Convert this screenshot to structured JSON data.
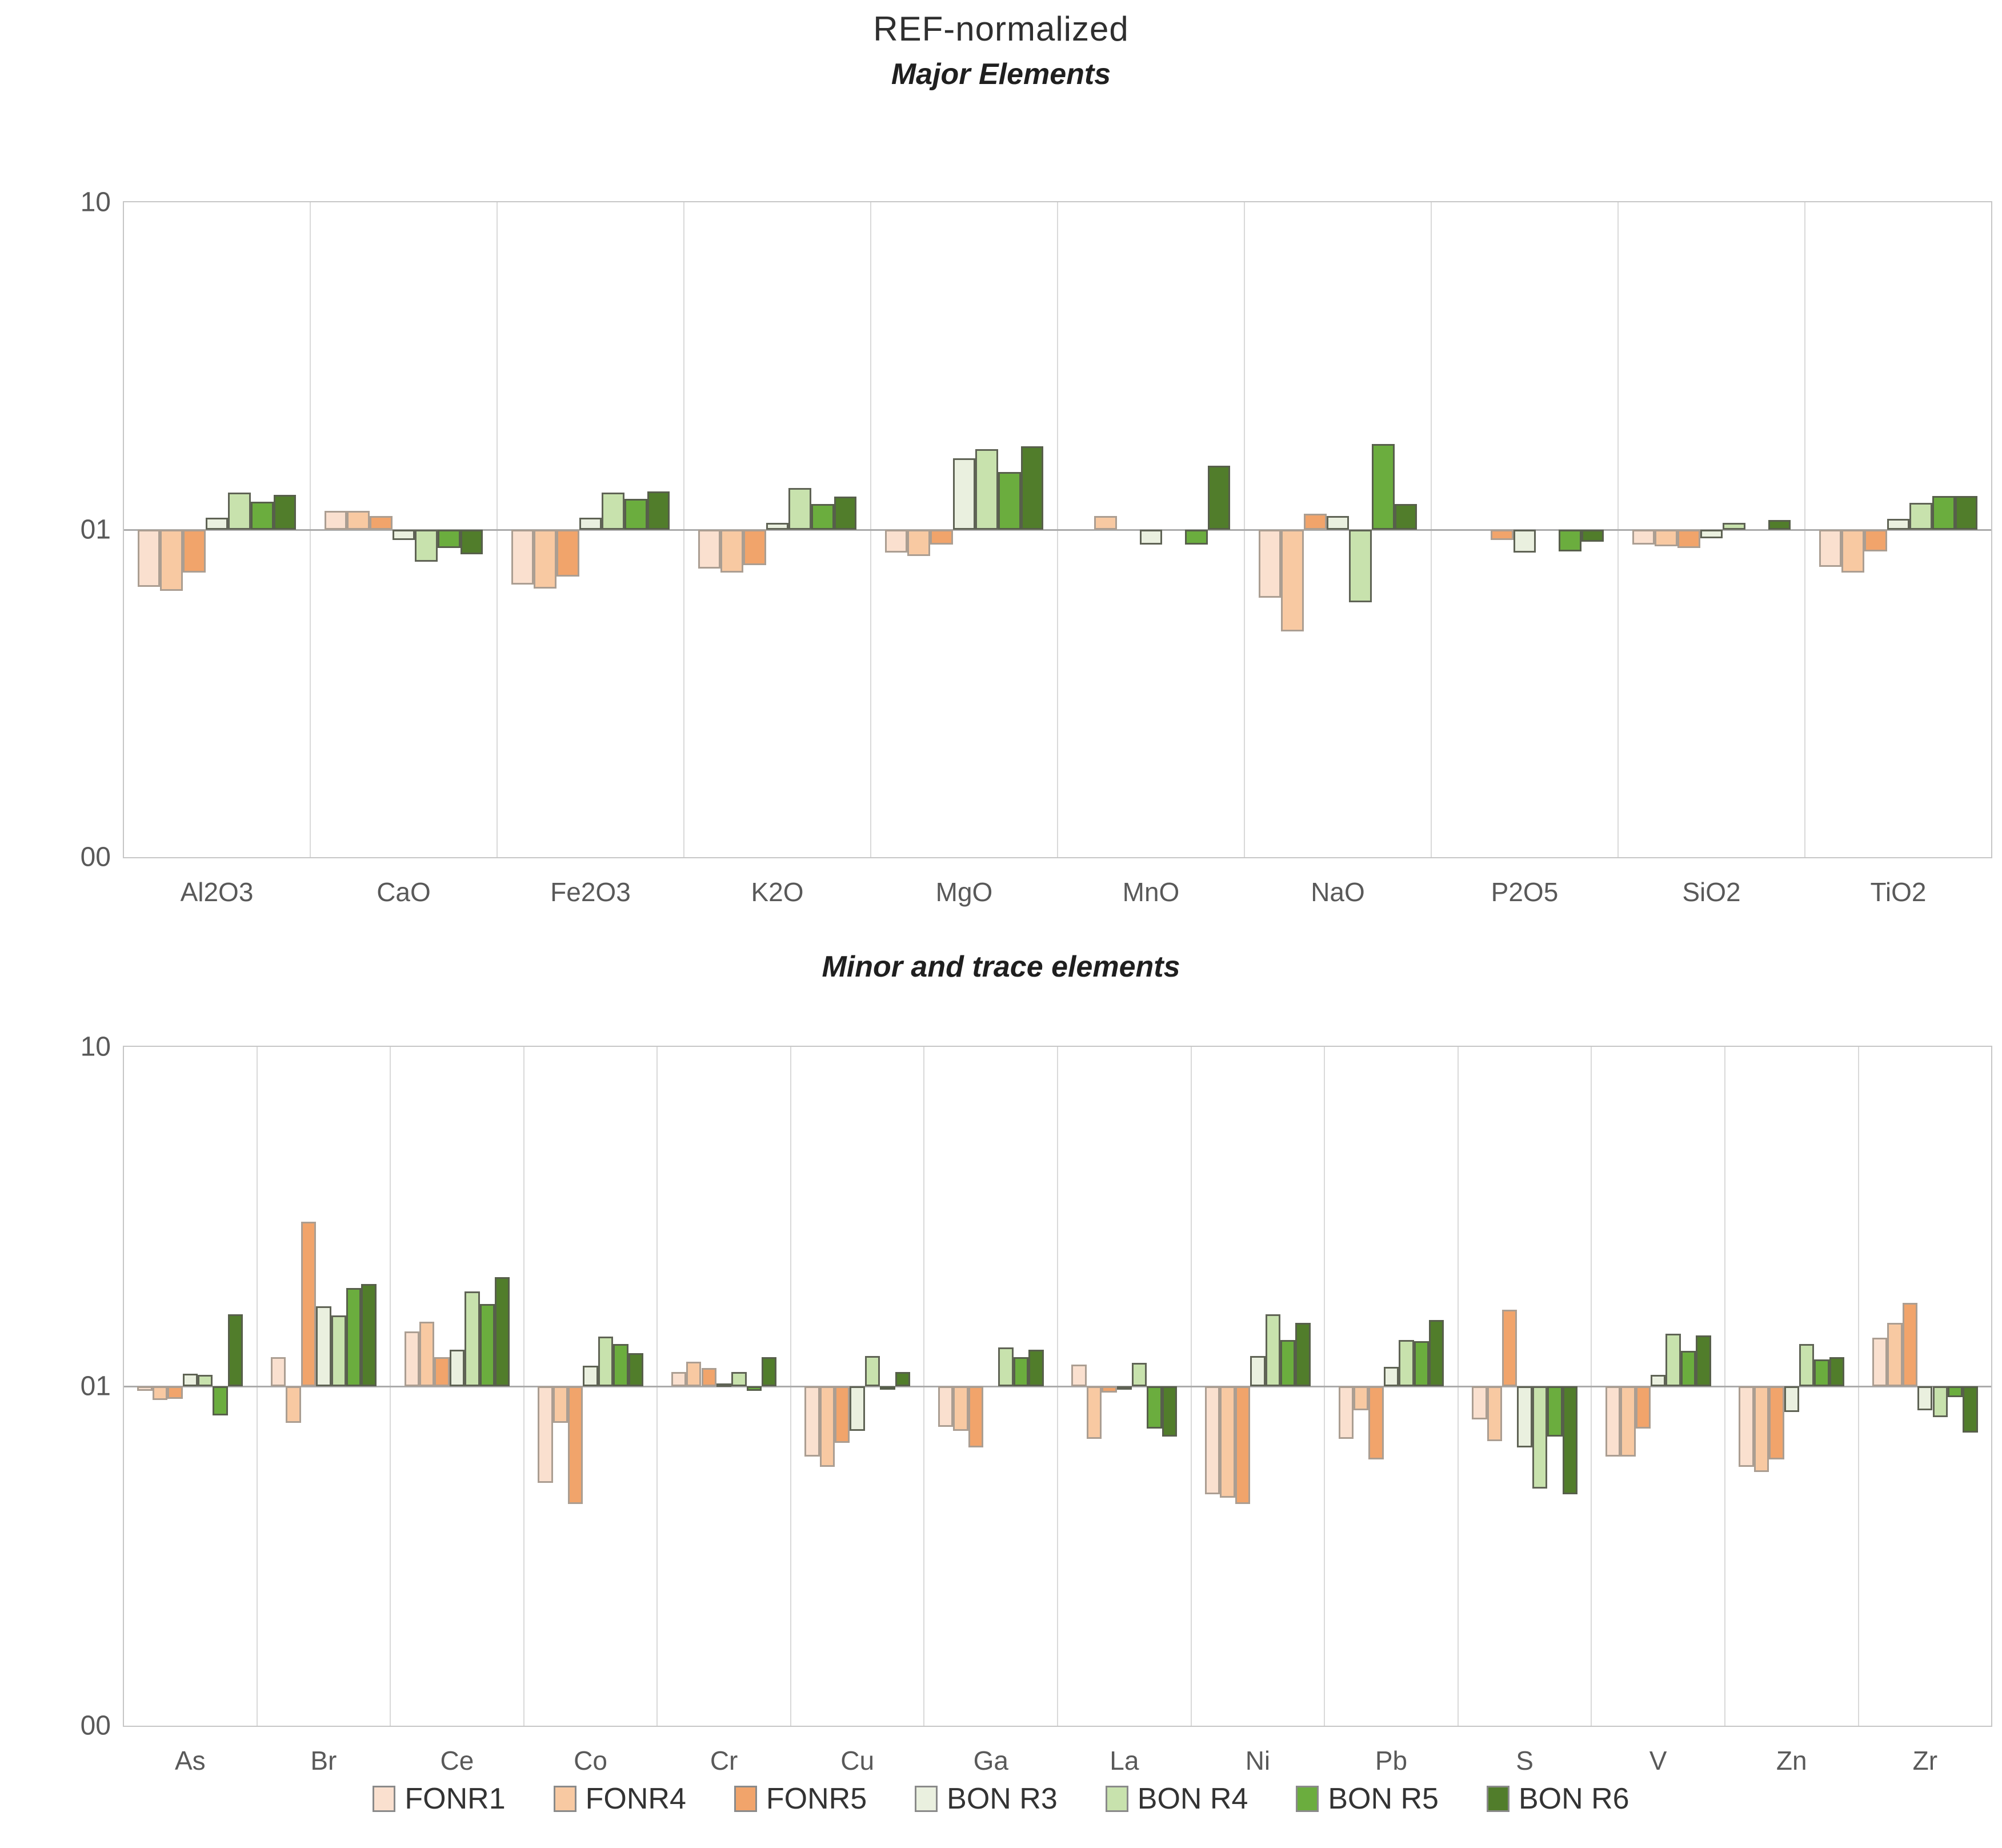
{
  "title": "REF-normalized",
  "legend": {
    "items": [
      {
        "label": "FONR1",
        "fill": "#fae0cf",
        "border": "#ab9e92"
      },
      {
        "label": "FONR4",
        "fill": "#f8c9a2",
        "border": "#ab9e92"
      },
      {
        "label": "FONR5",
        "fill": "#f1a46b",
        "border": "#ab9e92"
      },
      {
        "label": "BON R3",
        "fill": "#eaf0df",
        "border": "#5f6355"
      },
      {
        "label": "BON R4",
        "fill": "#c8e2ad",
        "border": "#5f6355"
      },
      {
        "label": "BON R5",
        "fill": "#6bad3e",
        "border": "#575f4b"
      },
      {
        "label": "BON R6",
        "fill": "#517d2b",
        "border": "#575f4b"
      }
    ]
  },
  "chart_data": [
    {
      "type": "bar",
      "subtitle": "Major Elements",
      "bar_width_pct": 12.2,
      "y_axis": {
        "scale": "log",
        "min": 0.1,
        "max": 10,
        "baseline": 1,
        "tick_labels": [
          "10",
          "01",
          "00"
        ]
      },
      "grid": "vertical-category-separators",
      "legend_position": "none",
      "categories": [
        "Al2O3",
        "CaO",
        "Fe2O3",
        "K2O",
        "MgO",
        "MnO",
        "NaO",
        "P2O5",
        "SiO2",
        "TiO2"
      ],
      "series": [
        {
          "name": "FONR1",
          "values": [
            0.67,
            1.14,
            0.68,
            0.76,
            0.85,
            1.0,
            0.62,
            1.0,
            0.9,
            0.77
          ]
        },
        {
          "name": "FONR4",
          "values": [
            0.65,
            1.14,
            0.66,
            0.74,
            0.83,
            1.1,
            0.49,
            1.0,
            0.89,
            0.74
          ]
        },
        {
          "name": "FONR5",
          "values": [
            0.74,
            1.1,
            0.72,
            0.78,
            0.9,
            1.0,
            1.12,
            0.93,
            0.88,
            0.86
          ]
        },
        {
          "name": "BON R3",
          "values": [
            1.09,
            0.93,
            1.09,
            1.05,
            1.65,
            0.9,
            1.1,
            0.85,
            0.94,
            1.08
          ]
        },
        {
          "name": "BON R4",
          "values": [
            1.3,
            0.8,
            1.3,
            1.34,
            1.76,
            1.0,
            0.6,
            1.0,
            1.05,
            1.21
          ]
        },
        {
          "name": "BON R5",
          "values": [
            1.22,
            0.88,
            1.24,
            1.2,
            1.5,
            0.9,
            1.83,
            0.86,
            1.0,
            1.27
          ]
        },
        {
          "name": "BON R6",
          "values": [
            1.28,
            0.84,
            1.31,
            1.26,
            1.8,
            1.57,
            1.2,
            0.92,
            1.07,
            1.27
          ]
        }
      ]
    },
    {
      "type": "bar",
      "subtitle": "Minor and trace elements",
      "bar_width_pct": 11.4,
      "y_axis": {
        "scale": "log",
        "min": 0.1,
        "max": 10,
        "baseline": 1,
        "tick_labels": [
          "10",
          "01",
          "00"
        ]
      },
      "grid": "vertical-category-separators",
      "legend_position": "bottom",
      "categories": [
        "As",
        "Br",
        "Ce",
        "Co",
        "Cr",
        "Cu",
        "Ga",
        "La",
        "Ni",
        "Pb",
        "S",
        "V",
        "Zn",
        "Zr"
      ],
      "series": [
        {
          "name": "FONR1",
          "values": [
            0.97,
            1.22,
            1.45,
            0.52,
            1.1,
            0.62,
            0.76,
            1.16,
            0.48,
            0.7,
            0.8,
            0.62,
            0.58,
            1.39
          ]
        },
        {
          "name": "FONR4",
          "values": [
            0.91,
            0.78,
            1.55,
            0.78,
            1.18,
            0.58,
            0.74,
            0.7,
            0.47,
            0.85,
            0.69,
            0.62,
            0.56,
            1.54
          ]
        },
        {
          "name": "FONR5",
          "values": [
            0.92,
            3.05,
            1.22,
            0.45,
            1.13,
            0.68,
            0.66,
            0.96,
            0.45,
            0.61,
            1.68,
            0.75,
            0.61,
            1.76
          ]
        },
        {
          "name": "BON R3",
          "values": [
            1.09,
            1.72,
            1.28,
            1.15,
            1.02,
            0.74,
            1.0,
            0.99,
            1.23,
            1.14,
            0.66,
            1.08,
            0.84,
            0.85
          ]
        },
        {
          "name": "BON R4",
          "values": [
            1.08,
            1.62,
            1.9,
            1.4,
            1.1,
            1.23,
            1.3,
            1.17,
            1.63,
            1.37,
            0.5,
            1.43,
            1.33,
            0.81
          ]
        },
        {
          "name": "BON R5",
          "values": [
            0.82,
            1.95,
            1.75,
            1.33,
            0.97,
            0.98,
            1.22,
            0.75,
            1.37,
            1.36,
            0.71,
            1.27,
            1.2,
            0.93
          ]
        },
        {
          "name": "BON R6",
          "values": [
            1.63,
            2.0,
            2.1,
            1.25,
            1.22,
            1.1,
            1.28,
            0.71,
            1.54,
            1.57,
            0.48,
            1.41,
            1.22,
            0.73
          ]
        }
      ]
    }
  ]
}
